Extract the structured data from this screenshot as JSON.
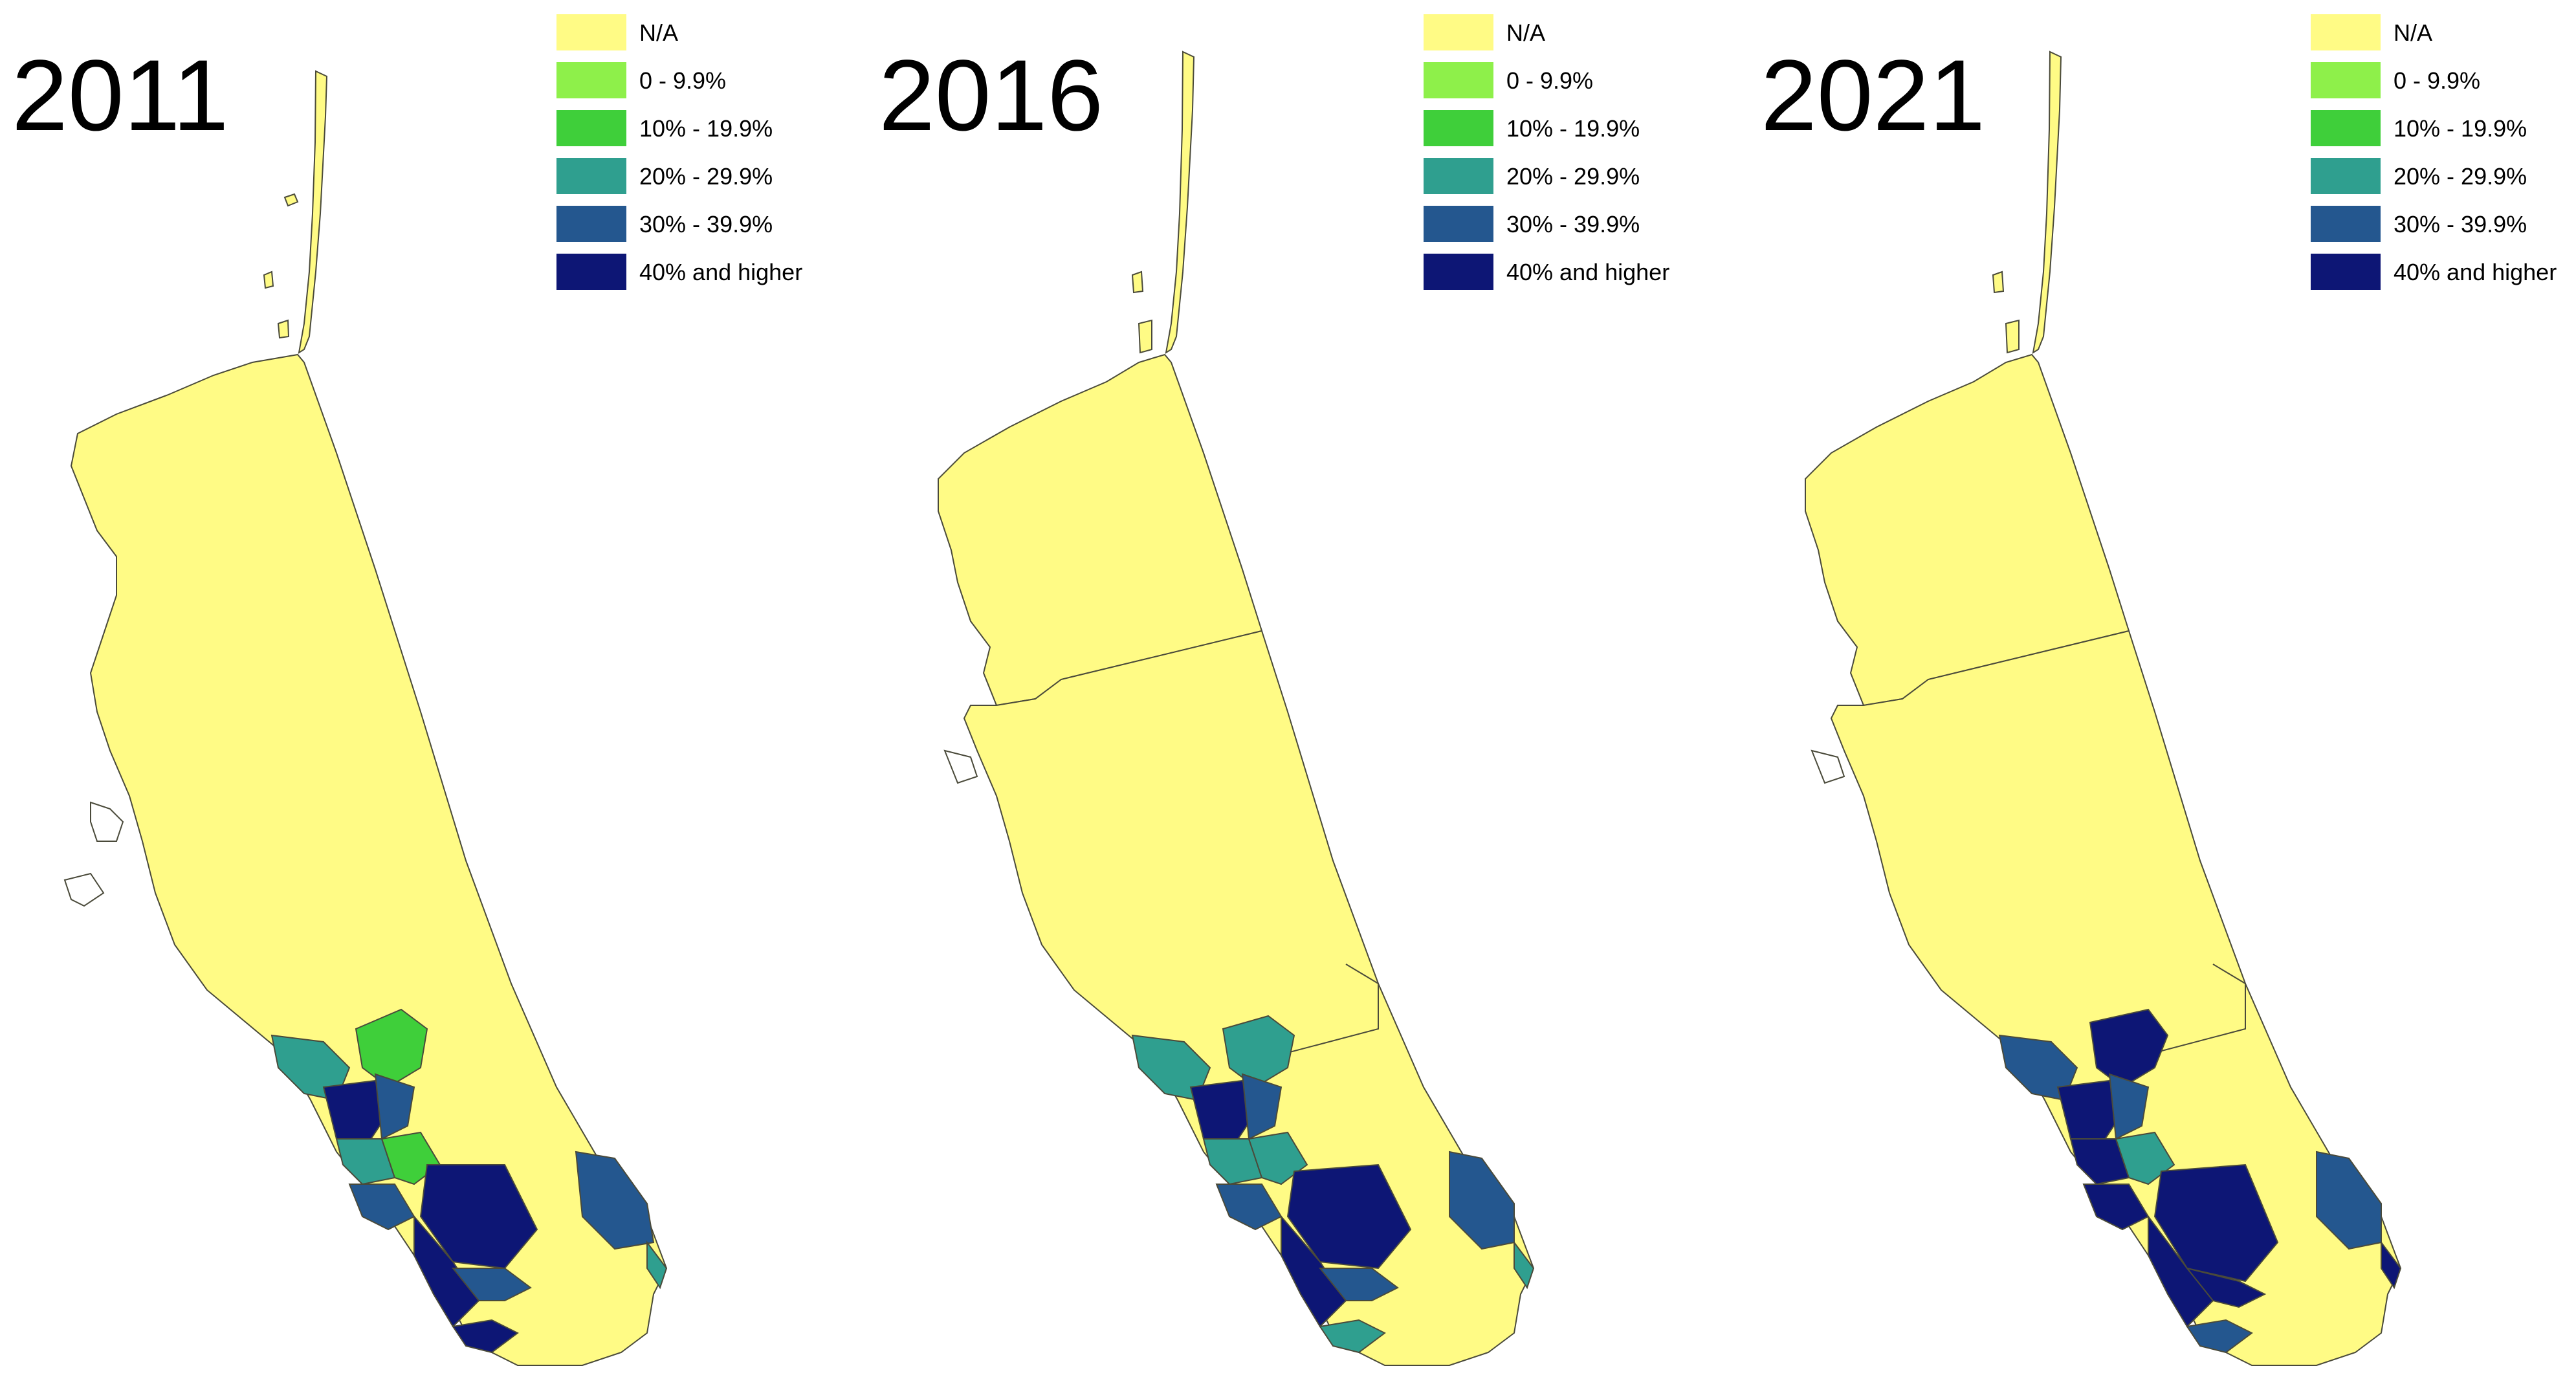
{
  "legend": {
    "items": [
      {
        "label": "N/A",
        "color": "#fffb85"
      },
      {
        "label": "0 - 9.9%",
        "color": "#8ef04a"
      },
      {
        "label": "10% - 19.9%",
        "color": "#3fcf3a"
      },
      {
        "label": "20% - 29.9%",
        "color": "#2f9f8f"
      },
      {
        "label": "30% - 39.9%",
        "color": "#24578f"
      },
      {
        "label": "40% and higher",
        "color": "#0d1675"
      }
    ]
  },
  "panels": [
    {
      "year": "2011"
    },
    {
      "year": "2016"
    },
    {
      "year": "2021"
    }
  ],
  "colors": {
    "na": "#fffb85",
    "c0": "#8ef04a",
    "c10": "#3fcf3a",
    "c20": "#2f9f8f",
    "c30": "#24578f",
    "c40": "#0d1675",
    "border": "#4a4a3a"
  }
}
